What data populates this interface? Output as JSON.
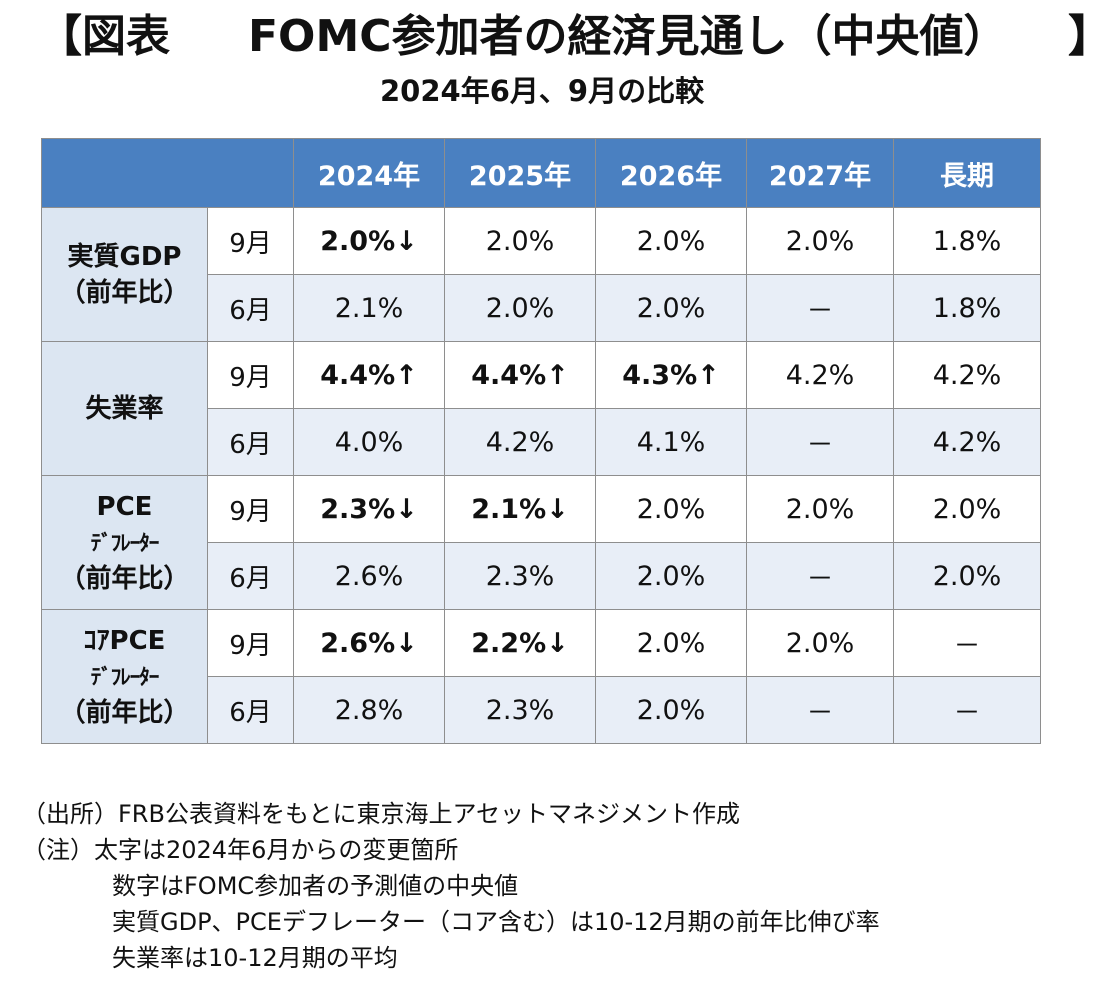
{
  "title": {
    "open_bracket": "【図表",
    "main": "FOMC参加者の経済見通し（中央値）",
    "close_bracket": "】"
  },
  "subtitle": "2024年6月、9月の比較",
  "table": {
    "columns": [
      "2024年",
      "2025年",
      "2026年",
      "2027年",
      "長期"
    ],
    "categories": [
      {
        "lines": [
          "実質GDP",
          "（前年比）"
        ],
        "rows": [
          {
            "month": "9月",
            "values": [
              "2.0%↓",
              "2.0%",
              "2.0%",
              "2.0%",
              "1.8%"
            ]
          },
          {
            "month": "6月",
            "values": [
              "2.1%",
              "2.0%",
              "2.0%",
              "－",
              "1.8%"
            ]
          }
        ]
      },
      {
        "lines": [
          "失業率"
        ],
        "rows": [
          {
            "month": "9月",
            "values": [
              "4.4%↑",
              "4.4%↑",
              "4.3%↑",
              "4.2%",
              "4.2%"
            ]
          },
          {
            "month": "6月",
            "values": [
              "4.0%",
              "4.2%",
              "4.1%",
              "－",
              "4.2%"
            ]
          }
        ]
      },
      {
        "lines": [
          "PCE",
          "ﾃﾞﾌﾚｰﾀｰ",
          "（前年比）"
        ],
        "rows": [
          {
            "month": "9月",
            "values": [
              "2.3%↓",
              "2.1%↓",
              "2.0%",
              "2.0%",
              "2.0%"
            ]
          },
          {
            "month": "6月",
            "values": [
              "2.6%",
              "2.3%",
              "2.0%",
              "－",
              "2.0%"
            ]
          }
        ]
      },
      {
        "lines": [
          "ｺｱPCE",
          "ﾃﾞﾌﾚｰﾀｰ",
          "（前年比）"
        ],
        "rows": [
          {
            "month": "9月",
            "values": [
              "2.6%↓",
              "2.2%↓",
              "2.0%",
              "2.0%",
              "－"
            ]
          },
          {
            "month": "6月",
            "values": [
              "2.8%",
              "2.3%",
              "2.0%",
              "－",
              "－"
            ]
          }
        ]
      }
    ]
  },
  "notes": [
    "（出所）FRB公表資料をもとに東京海上アセットマネジメント作成",
    "（注）太字は2024年6月からの変更箇所",
    "数字はFOMC参加者の予測値の中央値",
    "実質GDP、PCEデフレーター（コア含む）は10-12月期の前年比伸び率",
    "失業率は10-12月期の平均"
  ]
}
